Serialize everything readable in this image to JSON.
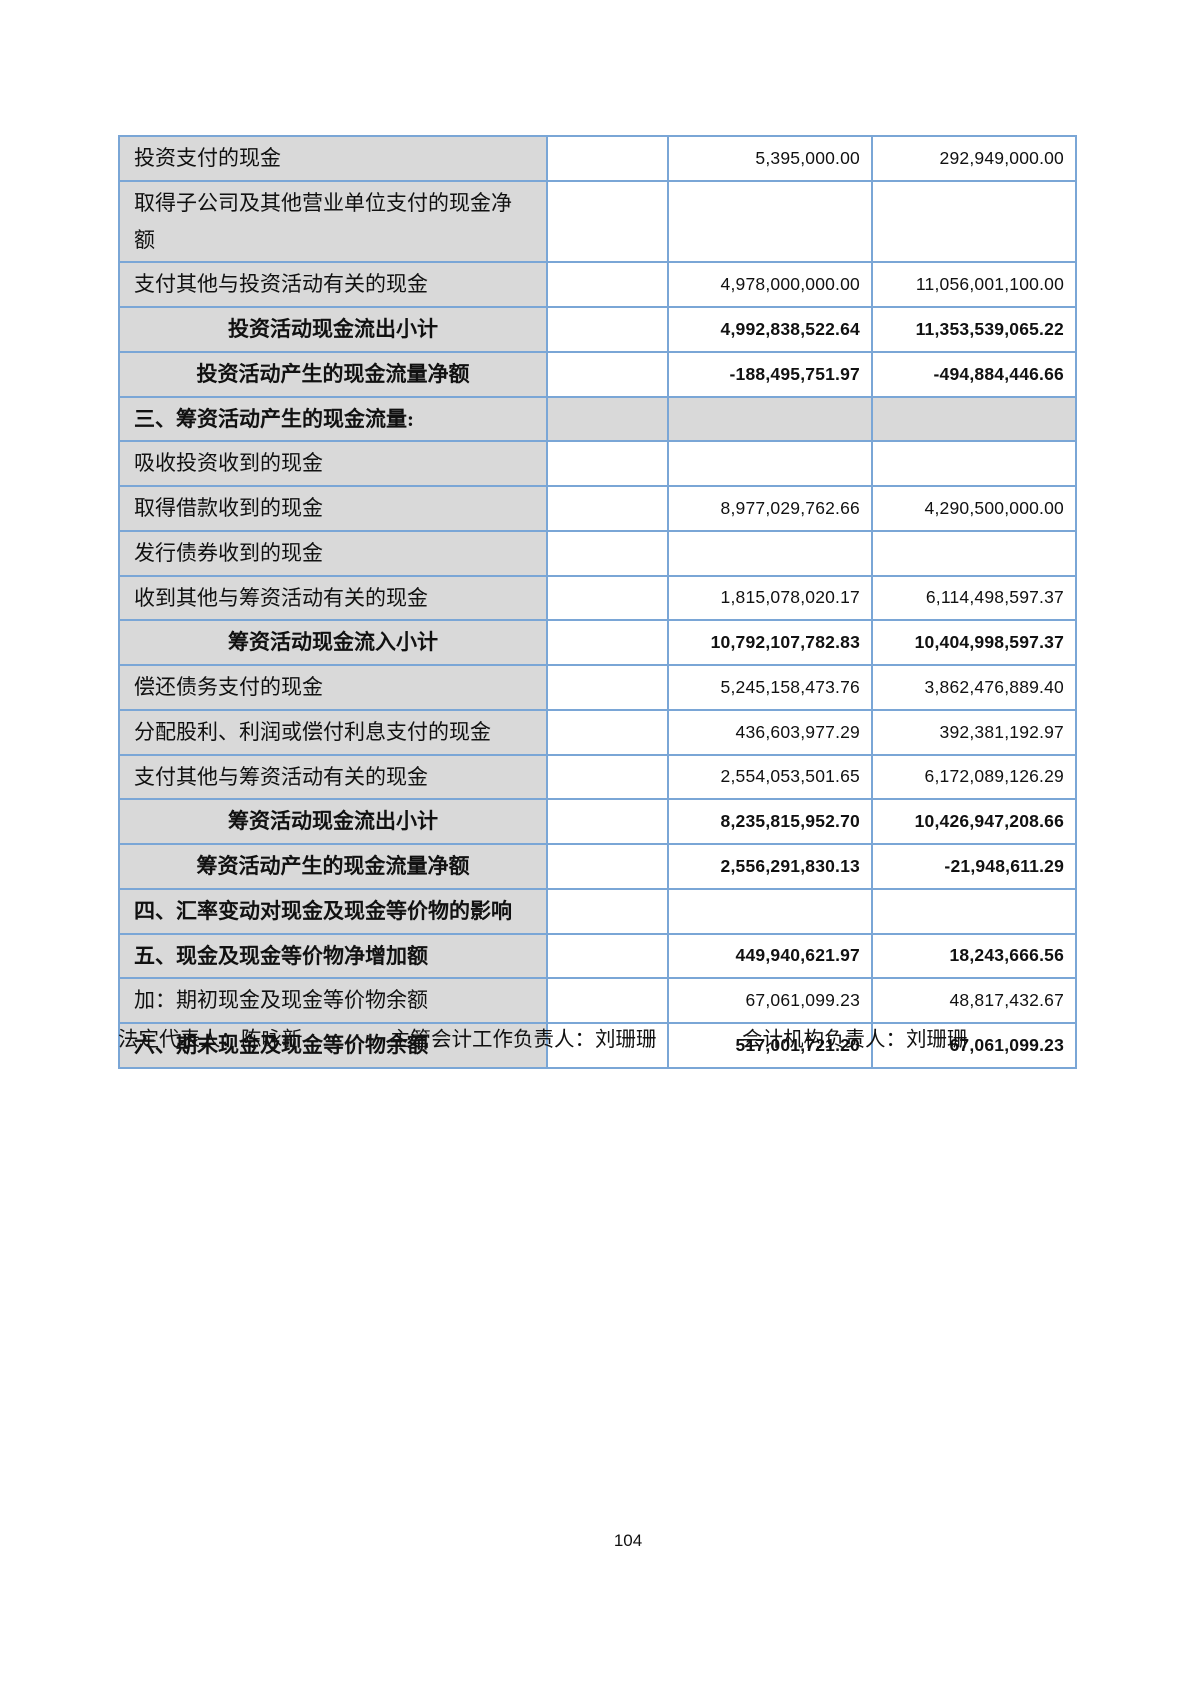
{
  "colors": {
    "border_blue": "#7aa6d6",
    "label_fill_gray": "#d9d9d9",
    "text": "#111111"
  },
  "table": {
    "rows": [
      {
        "style": "normal",
        "label": "投资支付的现金",
        "note": "",
        "current": "5,395,000.00",
        "prior": "292,949,000.00"
      },
      {
        "style": "normal",
        "label": "取得子公司及其他营业单位支付的现金净额",
        "note": "",
        "current": "",
        "prior": ""
      },
      {
        "style": "normal",
        "label": "支付其他与投资活动有关的现金",
        "note": "",
        "current": "4,978,000,000.00",
        "prior": "11,056,001,100.00"
      },
      {
        "style": "subtotal",
        "label": "投资活动现金流出小计",
        "note": "",
        "current": "4,992,838,522.64",
        "prior": "11,353,539,065.22"
      },
      {
        "style": "subtotal",
        "label": "投资活动产生的现金流量净额",
        "note": "",
        "current": "-188,495,751.97",
        "prior": "-494,884,446.66"
      },
      {
        "style": "section",
        "label": "三、筹资活动产生的现金流量:",
        "note": "",
        "current": "",
        "prior": ""
      },
      {
        "style": "normal",
        "label": "吸收投资收到的现金",
        "note": "",
        "current": "",
        "prior": ""
      },
      {
        "style": "normal",
        "label": "取得借款收到的现金",
        "note": "",
        "current": "8,977,029,762.66",
        "prior": "4,290,500,000.00"
      },
      {
        "style": "normal",
        "label": "发行债券收到的现金",
        "note": "",
        "current": "",
        "prior": ""
      },
      {
        "style": "normal",
        "label": "收到其他与筹资活动有关的现金",
        "note": "",
        "current": "1,815,078,020.17",
        "prior": "6,114,498,597.37"
      },
      {
        "style": "subtotal",
        "label": "筹资活动现金流入小计",
        "note": "",
        "current": "10,792,107,782.83",
        "prior": "10,404,998,597.37"
      },
      {
        "style": "normal",
        "label": "偿还债务支付的现金",
        "note": "",
        "current": "5,245,158,473.76",
        "prior": "3,862,476,889.40"
      },
      {
        "style": "normal",
        "label": "分配股利、利润或偿付利息支付的现金",
        "note": "",
        "current": "436,603,977.29",
        "prior": "392,381,192.97"
      },
      {
        "style": "normal",
        "label": "支付其他与筹资活动有关的现金",
        "note": "",
        "current": "2,554,053,501.65",
        "prior": "6,172,089,126.29"
      },
      {
        "style": "subtotal",
        "label": "筹资活动现金流出小计",
        "note": "",
        "current": "8,235,815,952.70",
        "prior": "10,426,947,208.66"
      },
      {
        "style": "subtotal",
        "label": "筹资活动产生的现金流量净额",
        "note": "",
        "current": "2,556,291,830.13",
        "prior": "-21,948,611.29"
      },
      {
        "style": "bold",
        "label": "四、汇率变动对现金及现金等价物的影响",
        "note": "",
        "current": "",
        "prior": ""
      },
      {
        "style": "bold",
        "label": "五、现金及现金等价物净增加额",
        "note": "",
        "current": "449,940,621.97",
        "prior": "18,243,666.56"
      },
      {
        "style": "normal",
        "label": "加：期初现金及现金等价物余额",
        "note": "",
        "current": "67,061,099.23",
        "prior": "48,817,432.67"
      },
      {
        "style": "bold",
        "label": "六、期末现金及现金等价物余额",
        "note": "",
        "current": "517,001,721.20",
        "prior": "67,061,099.23"
      }
    ]
  },
  "footer": {
    "legal_representative": "法定代表人：陈咏新",
    "chief_accounting_officer": "主管会计工作负责人：刘珊珊",
    "accounting_department_head": "会计机构负责人：刘珊珊"
  },
  "page": {
    "number": "104"
  }
}
